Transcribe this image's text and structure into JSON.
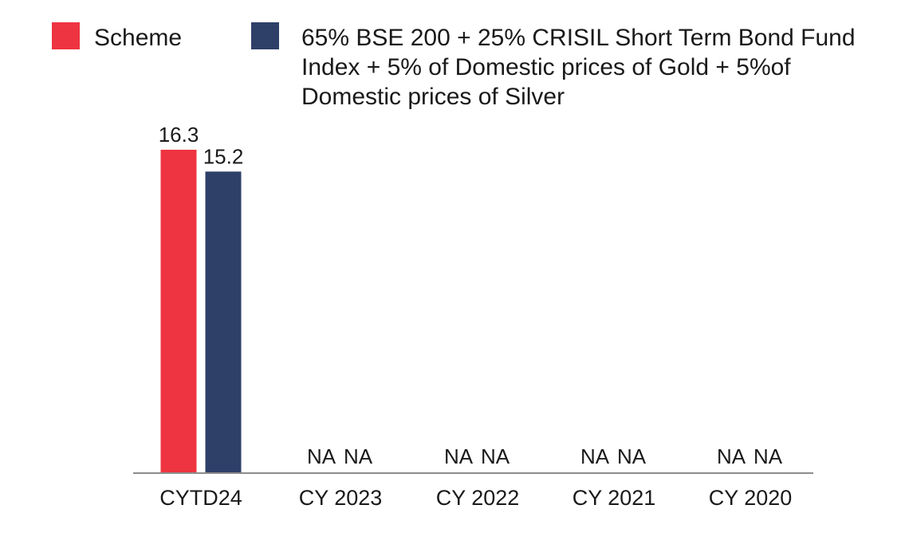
{
  "chart_data": {
    "type": "bar",
    "categories": [
      "CYTD24",
      "CY 2023",
      "CY 2022",
      "CY 2021",
      "CY 2020"
    ],
    "series": [
      {
        "name": "Scheme",
        "color": "#ee3440",
        "values": [
          16.3,
          null,
          null,
          null,
          null
        ],
        "labels": [
          "16.3",
          "NA",
          "NA",
          "NA",
          "NA"
        ]
      },
      {
        "name": "65% BSE 200 + 25% CRISIL Short Term Bond Fund Index + 5% of Domestic prices of Gold + 5%of Domestic prices of Silver",
        "name_lines": [
          "65% BSE 200 + 25% CRISIL Short Term Bond Fund",
          "Index + 5% of Domestic prices of Gold + 5%of",
          "Domestic prices of Silver"
        ],
        "color": "#2e4068",
        "values": [
          15.2,
          null,
          null,
          null,
          null
        ],
        "labels": [
          "15.2",
          "NA",
          "NA",
          "NA",
          "NA"
        ]
      }
    ],
    "ylim": [
      0,
      18
    ],
    "grid": false,
    "legend_position": "top"
  }
}
